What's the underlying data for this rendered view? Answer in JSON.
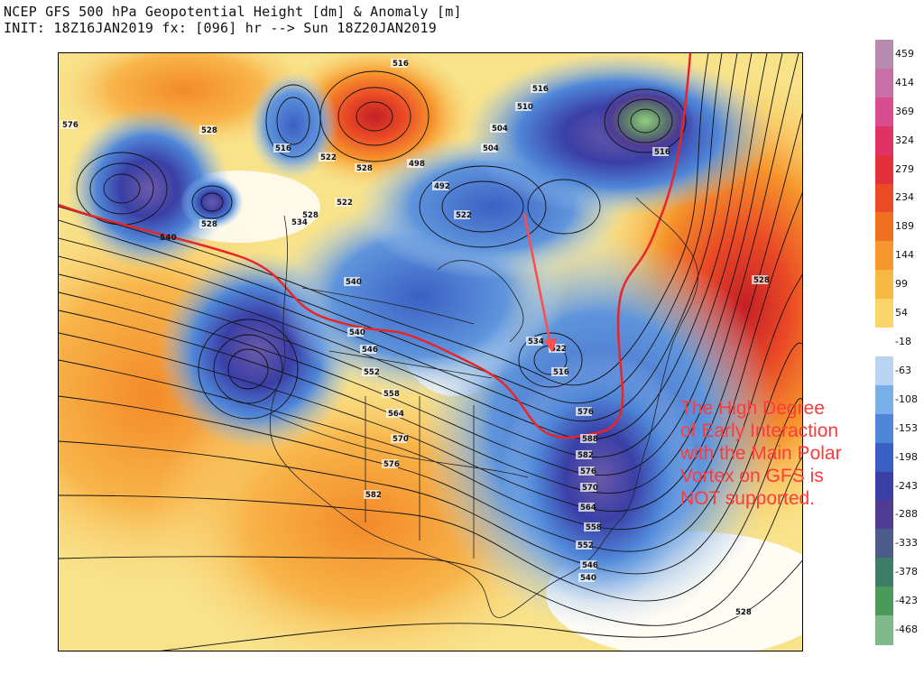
{
  "header": {
    "line1": "NCEP GFS 500 hPa Geopotential Height [dm] & Anomaly [m]",
    "line2": "INIT: 18Z16JAN2019 fx: [096] hr --> Sun 18Z20JAN2019"
  },
  "map": {
    "contour_labels": [
      "516",
      "516",
      "510",
      "504",
      "516",
      "528",
      "516",
      "522",
      "528",
      "498",
      "492",
      "504",
      "522",
      "522",
      "528",
      "528",
      "534",
      "540",
      "540",
      "546",
      "552",
      "558",
      "564",
      "570",
      "576",
      "582",
      "576",
      "588",
      "582",
      "576",
      "570",
      "564",
      "558",
      "552",
      "546",
      "540",
      "534",
      "522",
      "516",
      "528",
      "576",
      "528"
    ],
    "reference_line_label": "540",
    "arrow_color": "#ff4d4d",
    "line_color": "#e8262a"
  },
  "colorbar": {
    "labels": [
      "459",
      "414",
      "369",
      "324",
      "279",
      "234",
      "189",
      "144",
      "99",
      "54",
      "-18",
      "-63",
      "-108",
      "-153",
      "-198",
      "-243",
      "-288",
      "-333",
      "-378",
      "-423",
      "-468"
    ],
    "colors": [
      "#b78bb0",
      "#c86fa8",
      "#d94c8f",
      "#e03264",
      "#e2303a",
      "#ea4a25",
      "#f0701f",
      "#f6962c",
      "#f9b743",
      "#fbd46a",
      "#ffffff",
      "#b8d4f0",
      "#7aaee8",
      "#4f86d8",
      "#3b60c4",
      "#3a3fa6",
      "#503b93",
      "#4b5c8a",
      "#3f7b69",
      "#4c9a5a",
      "#7fb98a"
    ]
  },
  "annotation": {
    "lines": [
      "The High Degree",
      "of Early Interaction",
      "with the Main Polar",
      "Vortex on GFS is",
      "NOT supported."
    ],
    "color": "#ff3b3b"
  }
}
